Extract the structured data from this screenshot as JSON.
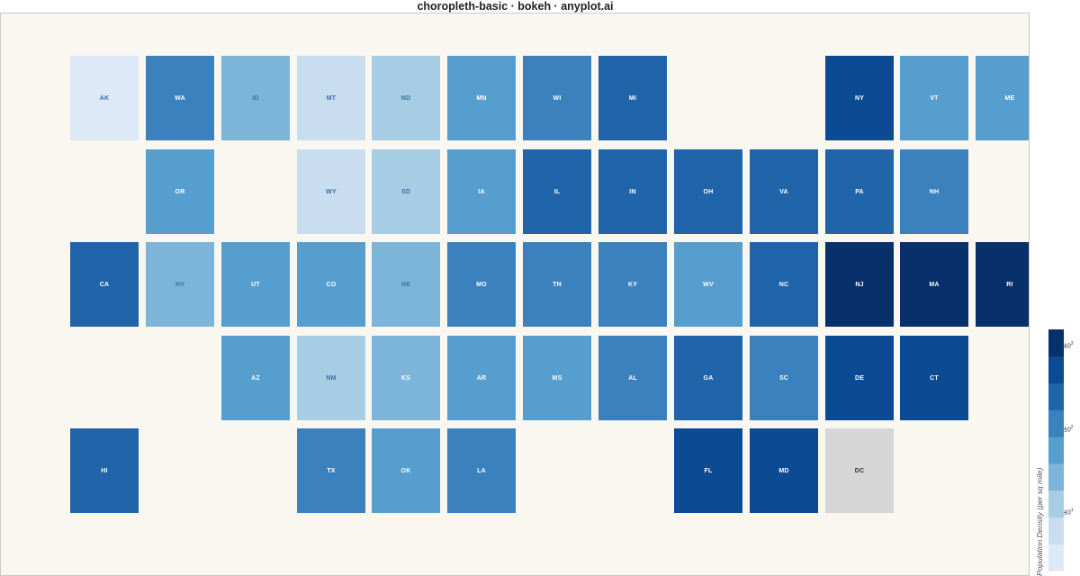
{
  "chart_data": {
    "type": "heatmap",
    "title": "choropleth-basic · bokeh · anyplot.ai",
    "colorbar": {
      "title": "Population Density (per sq mile)",
      "scale": "log",
      "ticks": [
        {
          "base": "10",
          "exp": "1",
          "value": 10
        },
        {
          "base": "10",
          "exp": "2",
          "value": 100
        },
        {
          "base": "10",
          "exp": "3",
          "value": 1000
        }
      ],
      "colors": [
        "#dde9f6",
        "#c9ddf0",
        "#a6cde3",
        "#7cb5d9",
        "#569ecd",
        "#3a81bd",
        "#2064a9",
        "#0b4b93",
        "#08306b"
      ]
    },
    "missing_color": "#d6d6d6",
    "tiles": [
      {
        "state": "AK",
        "col": 0,
        "row": 0,
        "density": 1.3
      },
      {
        "state": "WA",
        "col": 1,
        "row": 0,
        "density": 117
      },
      {
        "state": "ID",
        "col": 2,
        "row": 0,
        "density": 22
      },
      {
        "state": "MT",
        "col": 3,
        "row": 0,
        "density": 7
      },
      {
        "state": "ND",
        "col": 4,
        "row": 0,
        "density": 11
      },
      {
        "state": "MN",
        "col": 5,
        "row": 0,
        "density": 71
      },
      {
        "state": "WI",
        "col": 6,
        "row": 0,
        "density": 108
      },
      {
        "state": "MI",
        "col": 7,
        "row": 0,
        "density": 177
      },
      {
        "state": "NY",
        "col": 10,
        "row": 0,
        "density": 421
      },
      {
        "state": "VT",
        "col": 11,
        "row": 0,
        "density": 68
      },
      {
        "state": "ME",
        "col": 12,
        "row": 0,
        "density": 44
      },
      {
        "state": "OR",
        "col": 1,
        "row": 1,
        "density": 44
      },
      {
        "state": "WY",
        "col": 3,
        "row": 1,
        "density": 6
      },
      {
        "state": "SD",
        "col": 4,
        "row": 1,
        "density": 12
      },
      {
        "state": "IA",
        "col": 5,
        "row": 1,
        "density": 57
      },
      {
        "state": "IL",
        "col": 6,
        "row": 1,
        "density": 230
      },
      {
        "state": "IN",
        "col": 7,
        "row": 1,
        "density": 189
      },
      {
        "state": "OH",
        "col": 8,
        "row": 1,
        "density": 287
      },
      {
        "state": "VA",
        "col": 9,
        "row": 1,
        "density": 218
      },
      {
        "state": "PA",
        "col": 10,
        "row": 1,
        "density": 290
      },
      {
        "state": "NH",
        "col": 11,
        "row": 1,
        "density": 153
      },
      {
        "state": "CA",
        "col": 0,
        "row": 2,
        "density": 254
      },
      {
        "state": "NV",
        "col": 1,
        "row": 2,
        "density": 28
      },
      {
        "state": "UT",
        "col": 2,
        "row": 2,
        "density": 39
      },
      {
        "state": "CO",
        "col": 3,
        "row": 2,
        "density": 56
      },
      {
        "state": "NE",
        "col": 4,
        "row": 2,
        "density": 25
      },
      {
        "state": "MO",
        "col": 5,
        "row": 2,
        "density": 89
      },
      {
        "state": "TN",
        "col": 6,
        "row": 2,
        "density": 167
      },
      {
        "state": "KY",
        "col": 7,
        "row": 2,
        "density": 114
      },
      {
        "state": "WV",
        "col": 8,
        "row": 2,
        "density": 75
      },
      {
        "state": "NC",
        "col": 9,
        "row": 2,
        "density": 214
      },
      {
        "state": "NJ",
        "col": 10,
        "row": 2,
        "density": 1263
      },
      {
        "state": "MA",
        "col": 11,
        "row": 2,
        "density": 901
      },
      {
        "state": "RI",
        "col": 12,
        "row": 2,
        "density": 1061
      },
      {
        "state": "AZ",
        "col": 2,
        "row": 3,
        "density": 64
      },
      {
        "state": "NM",
        "col": 3,
        "row": 3,
        "density": 17
      },
      {
        "state": "KS",
        "col": 4,
        "row": 3,
        "density": 36
      },
      {
        "state": "AR",
        "col": 5,
        "row": 3,
        "density": 58
      },
      {
        "state": "MS",
        "col": 6,
        "row": 3,
        "density": 63
      },
      {
        "state": "AL",
        "col": 7,
        "row": 3,
        "density": 99
      },
      {
        "state": "GA",
        "col": 8,
        "row": 3,
        "density": 185
      },
      {
        "state": "SC",
        "col": 9,
        "row": 3,
        "density": 170
      },
      {
        "state": "DE",
        "col": 10,
        "row": 3,
        "density": 508
      },
      {
        "state": "CT",
        "col": 11,
        "row": 3,
        "density": 744
      },
      {
        "state": "HI",
        "col": 0,
        "row": 4,
        "density": 227
      },
      {
        "state": "TX",
        "col": 3,
        "row": 4,
        "density": 111
      },
      {
        "state": "OK",
        "col": 4,
        "row": 4,
        "density": 57
      },
      {
        "state": "LA",
        "col": 5,
        "row": 4,
        "density": 108
      },
      {
        "state": "FL",
        "col": 8,
        "row": 4,
        "density": 401
      },
      {
        "state": "MD",
        "col": 9,
        "row": 4,
        "density": 636
      },
      {
        "state": "DC",
        "col": 10,
        "row": 4,
        "density": null
      }
    ]
  }
}
